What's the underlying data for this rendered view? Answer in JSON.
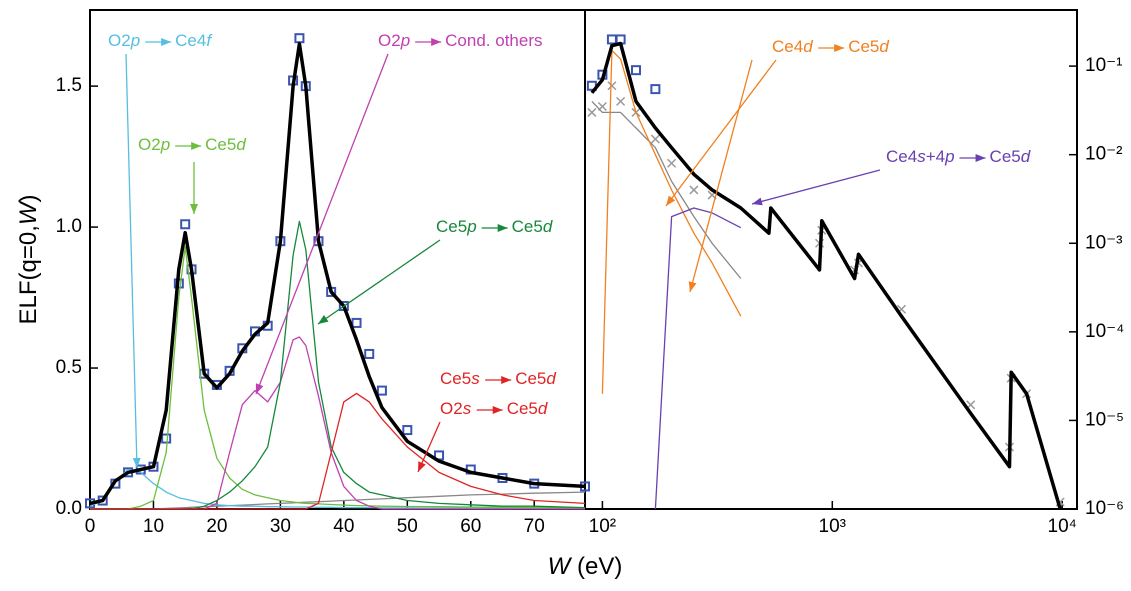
{
  "x_label": [
    {
      "text": "W",
      "italic": true
    },
    {
      "text": " (eV)"
    }
  ],
  "chart_data": [
    {
      "type": "line",
      "y_label": [
        {
          "text": "ELF(q=0,"
        },
        {
          "text": "W",
          "italic": true
        },
        {
          "text": ")"
        }
      ],
      "xlim": [
        0,
        78
      ],
      "ylim": [
        0,
        1.77
      ],
      "xticks": [
        0,
        10,
        20,
        30,
        40,
        50,
        60,
        70
      ],
      "yticks": [
        {
          "value": 0,
          "label": "0.0"
        },
        {
          "value": 0.5,
          "label": "0.5"
        },
        {
          "value": 1,
          "label": "1.0"
        },
        {
          "value": 1.5,
          "label": "1.5"
        }
      ],
      "x": [
        0,
        2,
        4,
        6,
        8,
        10,
        12,
        14,
        15,
        16,
        18,
        20,
        22,
        24,
        26,
        28,
        30,
        32,
        33,
        34,
        36,
        38,
        40,
        42,
        44,
        46,
        50,
        55,
        60,
        65,
        70,
        78
      ],
      "series": [
        {
          "color": "#3a55b0",
          "marker": "square",
          "values": [
            0.02,
            0.03,
            0.09,
            0.13,
            0.14,
            0.15,
            0.25,
            0.8,
            1.01,
            0.85,
            0.48,
            0.44,
            0.49,
            0.57,
            0.63,
            0.65,
            0.95,
            1.52,
            1.67,
            1.5,
            0.95,
            0.77,
            0.72,
            0.66,
            0.55,
            0.42,
            0.28,
            0.19,
            0.14,
            0.11,
            0.09,
            0.08
          ]
        },
        {
          "color": "#888888",
          "values": [
            0,
            0,
            0,
            0,
            0,
            0,
            0.002,
            0.004,
            0.005,
            0.006,
            0.008,
            0.01,
            0.012,
            0.014,
            0.016,
            0.018,
            0.02,
            0.022,
            0.023,
            0.024,
            0.026,
            0.028,
            0.03,
            0.032,
            0.034,
            0.036,
            0.04,
            0.045,
            0.05,
            0.053,
            0.056,
            0.06
          ]
        },
        {
          "color": "#55bfe0",
          "values": [
            0.01,
            0.03,
            0.1,
            0.14,
            0.13,
            0.09,
            0.06,
            0.04,
            0.035,
            0.03,
            0.02,
            0.015,
            0.012,
            0.01,
            0.01,
            0.008,
            0.008,
            0.007,
            0.007,
            0.007,
            0.006,
            0.006,
            0.005,
            0.005,
            0.005,
            0.004,
            0.004,
            0.003,
            0.003,
            0.003,
            0.002,
            0.002
          ]
        },
        {
          "color": "#6cbf3c",
          "values": [
            0,
            0,
            0,
            0,
            0.01,
            0.03,
            0.2,
            0.75,
            0.93,
            0.75,
            0.35,
            0.18,
            0.11,
            0.07,
            0.05,
            0.04,
            0.03,
            0.025,
            0.022,
            0.02,
            0.018,
            0.016,
            0.014,
            0.012,
            0.011,
            0.01,
            0.009,
            0.008,
            0.007,
            0.006,
            0.005,
            0.005
          ]
        },
        {
          "color": "#c040b0",
          "values": [
            0,
            0,
            0,
            0,
            0,
            0,
            0,
            0,
            0,
            0,
            0,
            0.02,
            0.2,
            0.37,
            0.42,
            0.38,
            0.45,
            0.6,
            0.61,
            0.58,
            0.4,
            0.2,
            0.08,
            0.03,
            0.01,
            0,
            0,
            0,
            0,
            0,
            0,
            0
          ]
        },
        {
          "color": "#16883a",
          "values": [
            0,
            0,
            0,
            0,
            0,
            0,
            0,
            0,
            0,
            0,
            0.01,
            0.03,
            0.06,
            0.1,
            0.15,
            0.22,
            0.45,
            0.9,
            1.02,
            0.92,
            0.45,
            0.22,
            0.13,
            0.09,
            0.06,
            0.05,
            0.03,
            0.02,
            0.015,
            0.01,
            0.01,
            0.005
          ]
        },
        {
          "color": "#e02424",
          "values": [
            0,
            0,
            0,
            0,
            0,
            0,
            0,
            0,
            0,
            0,
            0,
            0,
            0,
            0,
            0,
            0,
            0,
            0,
            0,
            0,
            0.02,
            0.2,
            0.38,
            0.41,
            0.38,
            0.32,
            0.22,
            0.13,
            0.08,
            0.05,
            0.03,
            0.02
          ]
        },
        {
          "color": "#000000",
          "width": 3.5,
          "values": [
            0.02,
            0.03,
            0.1,
            0.13,
            0.14,
            0.15,
            0.35,
            0.85,
            0.98,
            0.85,
            0.48,
            0.43,
            0.48,
            0.56,
            0.62,
            0.66,
            0.95,
            1.5,
            1.65,
            1.5,
            0.95,
            0.77,
            0.72,
            0.6,
            0.47,
            0.36,
            0.24,
            0.17,
            0.13,
            0.11,
            0.09,
            0.08
          ]
        }
      ],
      "annotations": [
        {
          "color": "#55bfe0",
          "from": [
            {
              "text": "O2"
            },
            {
              "text": "p",
              "italic": true
            }
          ],
          "to": [
            {
              "text": "Ce4"
            },
            {
              "text": "f",
              "italic": true
            }
          ]
        },
        {
          "color": "#6cbf3c",
          "from": [
            {
              "text": "O2"
            },
            {
              "text": "p",
              "italic": true
            }
          ],
          "to": [
            {
              "text": "Ce5"
            },
            {
              "text": "d",
              "italic": true
            }
          ]
        },
        {
          "color": "#c040b0",
          "from": [
            {
              "text": "O2"
            },
            {
              "text": "p",
              "italic": true
            }
          ],
          "to": [
            {
              "text": "Cond. others"
            }
          ]
        },
        {
          "color": "#16883a",
          "from": [
            {
              "text": "Ce5"
            },
            {
              "text": "p",
              "italic": true
            }
          ],
          "to": [
            {
              "text": "Ce5"
            },
            {
              "text": "d",
              "italic": true
            }
          ]
        },
        {
          "color": "#e02424",
          "from": [
            {
              "text": "Ce5"
            },
            {
              "text": "s",
              "italic": true
            }
          ],
          "to": [
            {
              "text": "Ce5"
            },
            {
              "text": "d",
              "italic": true
            }
          ]
        },
        {
          "color": "#e02424",
          "from": [
            {
              "text": "O2"
            },
            {
              "text": "s",
              "italic": true
            }
          ],
          "to": [
            {
              "text": "Ce5"
            },
            {
              "text": "d",
              "italic": true
            }
          ]
        }
      ]
    },
    {
      "type": "line",
      "xlog": true,
      "ylog": true,
      "y_side": "right",
      "xlim": [
        84,
        11600
      ],
      "ylim": [
        1e-06,
        0.43
      ],
      "xticks": [
        {
          "value": 100,
          "label": "10²"
        },
        {
          "value": 1000,
          "label": "10³"
        },
        {
          "value": 10000,
          "label": "10⁴"
        }
      ],
      "yticks": [
        {
          "value": 1e-06,
          "label": "10⁻⁶"
        },
        {
          "value": 1e-05,
          "label": "10⁻⁵"
        },
        {
          "value": 0.0001,
          "label": "10⁻⁴"
        },
        {
          "value": 0.001,
          "label": "10⁻³"
        },
        {
          "value": 0.01,
          "label": "10⁻²"
        },
        {
          "value": 0.1,
          "label": "10⁻¹"
        }
      ],
      "x": [
        90,
        100,
        110,
        120,
        140,
        170,
        200,
        250,
        300,
        400,
        530,
        540,
        880,
        900,
        1250,
        1300,
        2000,
        4000,
        5900,
        6000,
        7000,
        9800
      ],
      "series": [
        {
          "color": "#999999",
          "marker": "cross",
          "values": [
            0.03,
            0.035,
            0.06,
            0.04,
            0.03,
            0.015,
            0.008,
            0.004,
            0.0035,
            null,
            null,
            null,
            0.001,
            0.0014,
            0.0005,
            0.0006,
            0.00018,
            1.5e-05,
            5e-06,
            3e-05,
            2e-05,
            1.2e-06
          ]
        },
        {
          "color": "#3a55b0",
          "marker": "square",
          "values": [
            0.06,
            0.08,
            0.2,
            0.2,
            0.09,
            0.055,
            null,
            null,
            null,
            null,
            null,
            null,
            null,
            null,
            null,
            null,
            null,
            null,
            null,
            null,
            null,
            null
          ]
        },
        {
          "color": "#888888",
          "values": [
            0.04,
            0.03,
            0.03,
            0.03,
            0.02,
            0.012,
            0.005,
            0.002,
            0.001,
            0.0004,
            null,
            null,
            null,
            null,
            null,
            null,
            null,
            null,
            null,
            null,
            null,
            null
          ]
        },
        {
          "color": "#f08020",
          "values": [
            null,
            2e-05,
            0.15,
            0.12,
            0.03,
            0.01,
            0.004,
            0.0013,
            0.0006,
            0.00015,
            null,
            null,
            null,
            null,
            null,
            null,
            null,
            null,
            null,
            null,
            null,
            null
          ]
        },
        {
          "color": "#6a40b0",
          "values": [
            null,
            null,
            null,
            null,
            null,
            1e-06,
            0.002,
            0.0025,
            0.0022,
            0.0015,
            null,
            null,
            null,
            null,
            null,
            null,
            null,
            null,
            null,
            null,
            null,
            null
          ]
        },
        {
          "color": "#000000",
          "width": 3.5,
          "values": [
            0.05,
            0.07,
            0.17,
            0.18,
            0.04,
            0.02,
            0.012,
            0.006,
            0.004,
            0.0025,
            0.0013,
            0.0025,
            0.0005,
            0.0018,
            0.0004,
            0.00075,
            0.00015,
            1.2e-05,
            3e-06,
            3.5e-05,
            2e-05,
            1e-06
          ]
        }
      ],
      "annotations": [
        {
          "color": "#f08020",
          "from": [
            {
              "text": "Ce4"
            },
            {
              "text": "d",
              "italic": true
            }
          ],
          "to": [
            {
              "text": "Ce5"
            },
            {
              "text": "d",
              "italic": true
            }
          ]
        },
        {
          "color": "#6a40b0",
          "from": [
            {
              "text": "Ce4"
            },
            {
              "text": "s",
              "italic": true
            },
            {
              "text": "+4"
            },
            {
              "text": "p",
              "italic": true
            }
          ],
          "to": [
            {
              "text": "Ce5"
            },
            {
              "text": "d",
              "italic": true
            }
          ]
        }
      ]
    }
  ]
}
